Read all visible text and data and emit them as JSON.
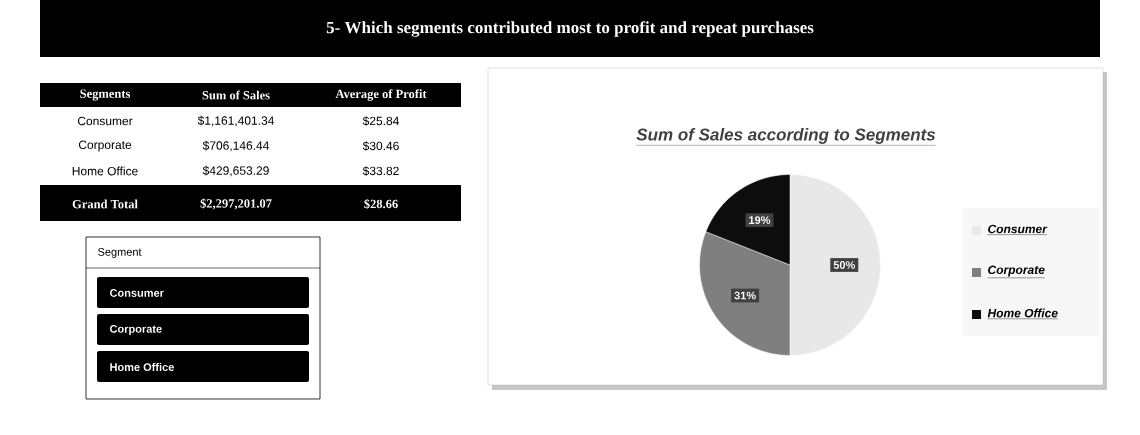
{
  "chart_data": [
    {
      "type": "other",
      "title": "5-  Which segments contributed most to profit and repeat purchases",
      "annotations": [
        "Segments",
        "Sum of Sales",
        "Average of Profit",
        "Consumer",
        "$1,161,401.34",
        "$25.84",
        "Corporate",
        "$706,146.44",
        "$30.46",
        "Home Office",
        "$429,653.29",
        "$33.82",
        "Grand Total",
        "$2,297,201.07",
        "$28.66"
      ]
    },
    {
      "type": "other",
      "title": "Segment",
      "annotations": [
        "Consumer",
        "Corporate",
        "Home Office"
      ]
    },
    {
      "type": "pie",
      "title": "Sum of Sales according to Segments",
      "categories": [
        "Consumer",
        "Corporate",
        "Home Office"
      ],
      "values": [
        50,
        31,
        19
      ],
      "colors": [
        "#e8e8e8",
        "#7f7f7f",
        "#0d0d0d"
      ],
      "value_labels": [
        "50%",
        "31%",
        "19%"
      ],
      "legend": "right"
    }
  ]
}
